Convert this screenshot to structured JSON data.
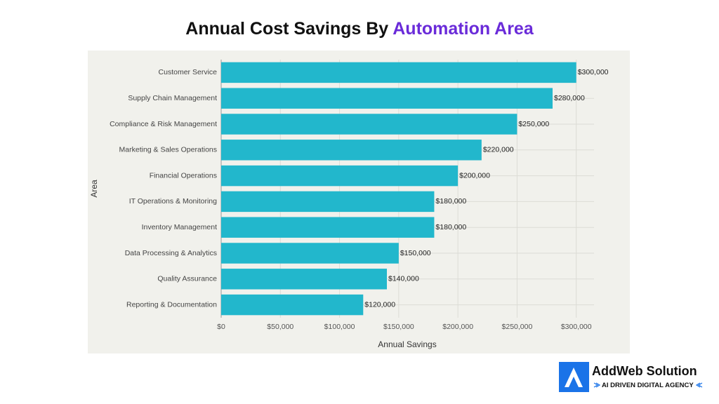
{
  "chart_data": {
    "type": "bar",
    "orientation": "horizontal",
    "title": "Annual Cost Savings By",
    "title_highlight": "Automation Area",
    "x_label": "Annual Savings",
    "y_label": "Area",
    "categories": [
      "Customer Service",
      "Supply Chain Management",
      "Compliance & Risk Management",
      "Marketing & Sales Operations",
      "Financial Operations",
      "IT Operations & Monitoring",
      "Inventory Management",
      "Data Processing & Analytics",
      "Quality Assurance",
      "Reporting & Documentation"
    ],
    "values": [
      300000,
      280000,
      250000,
      220000,
      200000,
      180000,
      180000,
      150000,
      140000,
      120000
    ],
    "value_labels": [
      "$300,000",
      "$280,000",
      "$250,000",
      "$220,000",
      "$200,000",
      "$180,000",
      "$180,000",
      "$150,000",
      "$140,000",
      "$120,000"
    ],
    "color": "#22b7cc",
    "xlim": [
      0,
      315000
    ],
    "xticks": [
      {
        "value": 0,
        "label": "$0"
      },
      {
        "value": 50000,
        "label": "$50,000"
      },
      {
        "value": 100000,
        "label": "$100,000"
      },
      {
        "value": 150000,
        "label": "$150,000"
      },
      {
        "value": 200000,
        "label": "$200,000"
      },
      {
        "value": 250000,
        "label": "$250,000"
      },
      {
        "value": 300000,
        "label": "$300,000"
      }
    ],
    "grid": true
  },
  "logo": {
    "name": "AddWeb Solution",
    "tagline": "AI DRIVEN DIGITAL AGENCY"
  }
}
